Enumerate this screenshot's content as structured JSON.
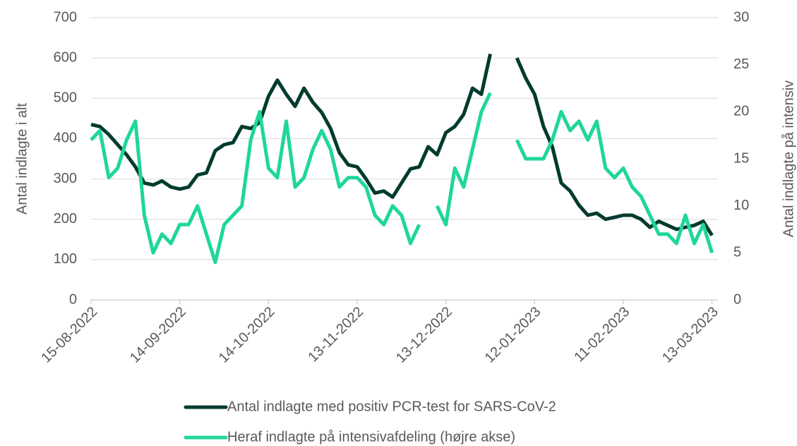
{
  "chart_data": {
    "type": "line",
    "x": [
      "2022-08-15",
      "2022-08-18",
      "2022-08-21",
      "2022-08-24",
      "2022-08-27",
      "2022-08-30",
      "2022-09-02",
      "2022-09-05",
      "2022-09-08",
      "2022-09-11",
      "2022-09-14",
      "2022-09-17",
      "2022-09-20",
      "2022-09-23",
      "2022-09-26",
      "2022-09-29",
      "2022-10-02",
      "2022-10-05",
      "2022-10-08",
      "2022-10-11",
      "2022-10-14",
      "2022-10-17",
      "2022-10-20",
      "2022-10-23",
      "2022-10-26",
      "2022-10-29",
      "2022-11-01",
      "2022-11-04",
      "2022-11-07",
      "2022-11-10",
      "2022-11-13",
      "2022-11-16",
      "2022-11-19",
      "2022-11-22",
      "2022-11-25",
      "2022-11-28",
      "2022-12-01",
      "2022-12-04",
      "2022-12-07",
      "2022-12-10",
      "2022-12-13",
      "2022-12-16",
      "2022-12-19",
      "2022-12-22",
      "2022-12-25",
      "2022-12-28",
      "2022-12-31",
      "2023-01-03",
      "2023-01-06",
      "2023-01-09",
      "2023-01-12",
      "2023-01-15",
      "2023-01-18",
      "2023-01-21",
      "2023-01-24",
      "2023-01-27",
      "2023-01-30",
      "2023-02-02",
      "2023-02-05",
      "2023-02-08",
      "2023-02-11",
      "2023-02-14",
      "2023-02-17",
      "2023-02-20",
      "2023-02-23",
      "2023-02-26",
      "2023-03-01",
      "2023-03-04",
      "2023-03-07",
      "2023-03-10",
      "2023-03-13"
    ],
    "series": [
      {
        "name": "Antal indlagte med positiv PCR-test for SARS-CoV-2",
        "color": "#003b2f",
        "axis": "y",
        "values": [
          435,
          430,
          410,
          385,
          360,
          330,
          290,
          285,
          295,
          280,
          275,
          280,
          310,
          315,
          370,
          385,
          390,
          430,
          425,
          440,
          505,
          545,
          510,
          480,
          525,
          490,
          465,
          425,
          365,
          335,
          330,
          300,
          265,
          270,
          255,
          290,
          325,
          330,
          380,
          360,
          415,
          430,
          460,
          525,
          510,
          610,
          null,
          null,
          600,
          550,
          510,
          430,
          380,
          290,
          270,
          235,
          210,
          215,
          200,
          205,
          210,
          210,
          200,
          180,
          195,
          185,
          175,
          180,
          185,
          195,
          160
        ]
      },
      {
        "name": "Heraf indlagte på intensivafdeling (højre akse)",
        "color": "#1fd69b",
        "axis": "y2",
        "values": [
          17,
          18,
          13,
          14,
          17,
          19,
          9,
          5,
          7,
          6,
          8,
          8,
          10,
          7,
          4,
          8,
          9,
          10,
          17,
          20,
          14,
          13,
          19,
          12,
          13,
          16,
          18,
          16,
          12,
          13,
          13,
          12,
          9,
          8,
          10,
          9,
          6,
          8,
          null,
          10,
          8,
          14,
          12,
          16,
          20,
          22,
          null,
          null,
          17,
          15,
          15,
          15,
          17,
          20,
          18,
          19,
          17,
          19,
          14,
          13,
          14,
          12,
          11,
          9,
          7,
          7,
          6,
          9,
          6,
          8,
          5
        ]
      }
    ],
    "xlim": [
      "2022-08-15",
      "2023-03-15"
    ],
    "xticks": [
      {
        "value": "2022-08-15",
        "label": "15-08-2022"
      },
      {
        "value": "2022-09-14",
        "label": "14-09-2022"
      },
      {
        "value": "2022-10-14",
        "label": "14-10-2022"
      },
      {
        "value": "2022-11-13",
        "label": "13-11-2022"
      },
      {
        "value": "2022-12-13",
        "label": "13-12-2022"
      },
      {
        "value": "2023-01-12",
        "label": "12-01-2023"
      },
      {
        "value": "2023-02-11",
        "label": "11-02-2023"
      },
      {
        "value": "2023-03-13",
        "label": "13-03-2023"
      }
    ],
    "ylim": [
      0,
      700
    ],
    "yticks": [
      0,
      100,
      200,
      300,
      400,
      500,
      600,
      700
    ],
    "y2lim": [
      0,
      30
    ],
    "y2ticks": [
      0,
      5,
      10,
      15,
      20,
      25,
      30
    ],
    "ylabel": "Antal indlagte i alt",
    "y2label": "Antal indlagte på intensiv",
    "grid": true,
    "legend": "bottom"
  }
}
